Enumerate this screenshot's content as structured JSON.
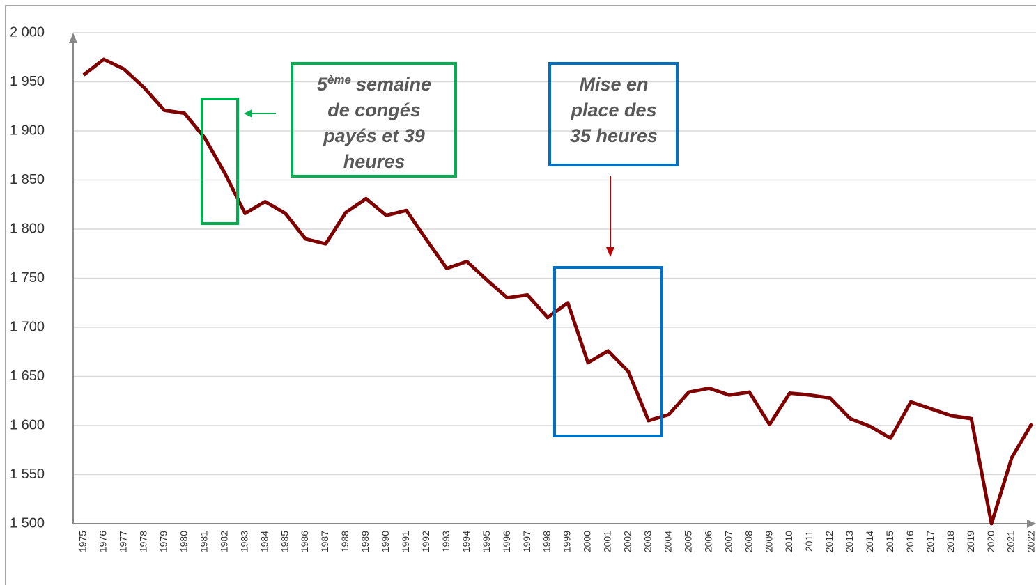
{
  "chart_data": {
    "type": "line",
    "categories": [
      "1975",
      "1976",
      "1977",
      "1978",
      "1979",
      "1980",
      "1981",
      "1982",
      "1983",
      "1984",
      "1985",
      "1986",
      "1987",
      "1988",
      "1989",
      "1990",
      "1991",
      "1992",
      "1993",
      "1994",
      "1995",
      "1996",
      "1997",
      "1998",
      "1999",
      "2000",
      "2001",
      "2002",
      "2003",
      "2004",
      "2005",
      "2006",
      "2007",
      "2008",
      "2009",
      "2010",
      "2011",
      "2012",
      "2013",
      "2014",
      "2015",
      "2016",
      "2017",
      "2018",
      "2019",
      "2020",
      "2021",
      "2022"
    ],
    "series": [
      {
        "color": "#7f0000",
        "values": [
          1957,
          1973,
          1963,
          1944,
          1921,
          1918,
          1893,
          1857,
          1816,
          1828,
          1816,
          1790,
          1785,
          1817,
          1831,
          1814,
          1819,
          1789,
          1760,
          1767,
          1748,
          1730,
          1733,
          1710,
          1725,
          1664,
          1676,
          1655,
          1605,
          1611,
          1634,
          1638,
          1631,
          1634,
          1601,
          1633,
          1631,
          1628,
          1607,
          1599,
          1587,
          1624,
          1617,
          1610,
          1607,
          1500,
          1567,
          1602
        ]
      }
    ],
    "ylim": [
      1500,
      2000
    ],
    "yticks": [
      {
        "value": 1500,
        "label": "1 500"
      },
      {
        "value": 1550,
        "label": "1 550"
      },
      {
        "value": 1600,
        "label": "1 600"
      },
      {
        "value": 1650,
        "label": "1 650"
      },
      {
        "value": 1700,
        "label": "1 700"
      },
      {
        "value": 1750,
        "label": "1 750"
      },
      {
        "value": 1800,
        "label": "1 800"
      },
      {
        "value": 1850,
        "label": "1 850"
      },
      {
        "value": 1900,
        "label": "1 900"
      },
      {
        "value": 1950,
        "label": "1 950"
      },
      {
        "value": 2000,
        "label": "2 000"
      }
    ],
    "grid": true,
    "annotations": [
      {
        "number": "5",
        "superscript": "ème",
        "lines": [
          "semaine",
          "de congés",
          "payés et 39",
          "heures"
        ]
      },
      {
        "lines": [
          "Mise en",
          "place des",
          "35 heures"
        ]
      }
    ]
  }
}
